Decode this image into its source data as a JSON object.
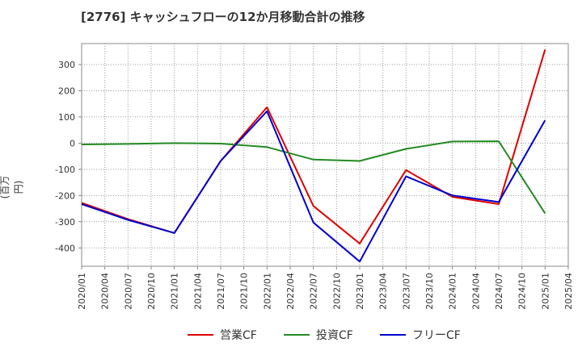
{
  "chart_data": {
    "type": "line",
    "title": "[2776]  キャッシュフローの12か月移動合計の推移",
    "ylabel": "(百万円)",
    "xlabel": "",
    "ylim": [
      -470,
      380
    ],
    "yticks": [
      300,
      200,
      100,
      0,
      -100,
      -200,
      -300,
      -400
    ],
    "categories": [
      "2020/01",
      "2020/04",
      "2020/07",
      "2020/10",
      "2021/01",
      "2021/04",
      "2021/07",
      "2021/10",
      "2022/01",
      "2022/04",
      "2022/07",
      "2022/10",
      "2023/01",
      "2023/04",
      "2023/07",
      "2023/10",
      "2024/01",
      "2024/04",
      "2024/07",
      "2024/10",
      "2025/01",
      "2025/04"
    ],
    "grid": true,
    "legend_position": "bottom",
    "series": [
      {
        "name": "営業CF",
        "color": "#dd0000",
        "points": [
          [
            "2020/01",
            -228
          ],
          [
            "2020/07",
            -290
          ],
          [
            "2021/01",
            -343
          ],
          [
            "2021/07",
            -68
          ],
          [
            "2022/01",
            137
          ],
          [
            "2022/07",
            -240
          ],
          [
            "2023/01",
            -383
          ],
          [
            "2023/07",
            -103
          ],
          [
            "2024/01",
            -205
          ],
          [
            "2024/07",
            -233
          ],
          [
            "2025/01",
            357
          ]
        ]
      },
      {
        "name": "投資CF",
        "color": "#228b22",
        "points": [
          [
            "2020/01",
            -5
          ],
          [
            "2020/07",
            -3
          ],
          [
            "2021/01",
            0
          ],
          [
            "2021/07",
            -2
          ],
          [
            "2022/01",
            -15
          ],
          [
            "2022/07",
            -63
          ],
          [
            "2023/01",
            -68
          ],
          [
            "2023/07",
            -22
          ],
          [
            "2024/01",
            6
          ],
          [
            "2024/07",
            7
          ],
          [
            "2025/01",
            -268
          ]
        ]
      },
      {
        "name": "フリーCF",
        "color": "#0000cc",
        "points": [
          [
            "2020/01",
            -233
          ],
          [
            "2020/07",
            -293
          ],
          [
            "2021/01",
            -343
          ],
          [
            "2021/07",
            -68
          ],
          [
            "2022/01",
            122
          ],
          [
            "2022/07",
            -303
          ],
          [
            "2023/01",
            -452
          ],
          [
            "2023/07",
            -127
          ],
          [
            "2024/01",
            -200
          ],
          [
            "2024/07",
            -225
          ],
          [
            "2025/01",
            87
          ]
        ]
      }
    ]
  }
}
